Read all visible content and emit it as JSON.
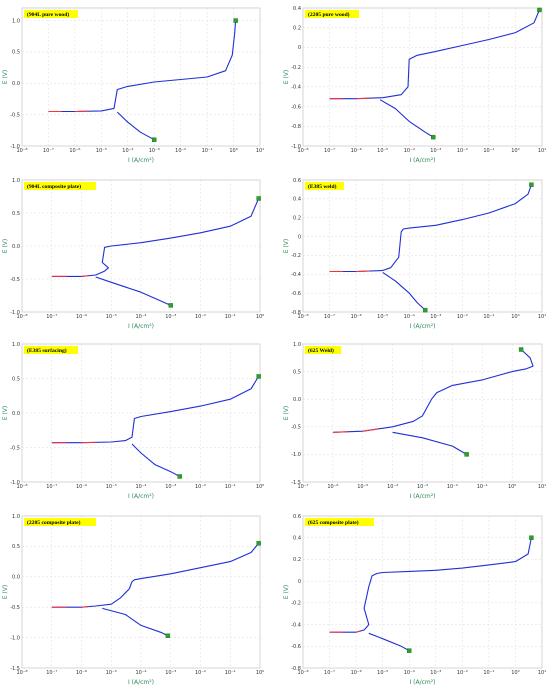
{
  "chart_data": [
    {
      "type": "line",
      "title": "(904L pure wood)",
      "xlabel": "I (A/cm²)",
      "ylabel": "E (V)",
      "x_scale": "log",
      "xlim": [
        1e-08,
        10
      ],
      "ylim": [
        -1.0,
        1.2
      ],
      "x_ticks": [
        "10⁻⁸",
        "10⁻⁷",
        "10⁻⁶",
        "10⁻⁵",
        "10⁻⁴",
        "10⁻³",
        "10⁻²",
        "10⁻¹",
        "10⁰",
        "10¹"
      ],
      "y_ticks": [
        1.0,
        0.5,
        0,
        -0.5,
        -1.0
      ],
      "y_tick_labels": [
        "1.0",
        "0.5",
        "0.0",
        "-0.5",
        "-1.0"
      ],
      "grid": true,
      "series": [
        {
          "x": [
            1e-07,
            1e-06,
            1e-05,
            3e-05,
            4e-05,
            0.0001,
            0.001,
            0.01,
            0.1,
            0.5,
            0.9,
            1.1,
            1.2
          ],
          "y": [
            -0.45,
            -0.45,
            -0.44,
            -0.4,
            -0.1,
            -0.05,
            0.02,
            0.06,
            0.1,
            0.2,
            0.45,
            0.8,
            1.0
          ]
        },
        {
          "x": [
            4e-05,
            0.0001,
            0.0003,
            0.001
          ],
          "y": [
            -0.46,
            -0.62,
            -0.78,
            -0.9
          ]
        }
      ]
    },
    {
      "type": "line",
      "title": "(2205 pure wood)",
      "xlabel": "I (A/cm²)",
      "ylabel": "E (V)",
      "x_scale": "log",
      "xlim": [
        1e-08,
        10
      ],
      "ylim": [
        -1.0,
        0.4
      ],
      "x_ticks": [
        "10⁻⁸",
        "10⁻⁷",
        "10⁻⁶",
        "10⁻⁵",
        "10⁻⁴",
        "10⁻³",
        "10⁻²",
        "10⁻¹",
        "10⁰",
        "10¹"
      ],
      "y_ticks": [
        0.4,
        0.2,
        0,
        -0.2,
        -0.4,
        -0.6,
        -0.8,
        -1.0
      ],
      "y_tick_labels": [
        "0.4",
        "0.2",
        "0",
        "-0.2",
        "-0.4",
        "-0.6",
        "-0.8",
        "-1.0"
      ],
      "grid": true,
      "series": [
        {
          "x": [
            1e-07,
            1e-06,
            1e-05,
            5e-05,
            9e-05,
            0.0001,
            0.0002,
            0.001,
            0.01,
            0.1,
            1,
            5,
            8
          ],
          "y": [
            -0.52,
            -0.52,
            -0.51,
            -0.48,
            -0.4,
            -0.12,
            -0.08,
            -0.04,
            0.02,
            0.08,
            0.15,
            0.25,
            0.38
          ]
        },
        {
          "x": [
            8e-06,
            3e-05,
            0.0001,
            0.0004,
            0.0008
          ],
          "y": [
            -0.53,
            -0.62,
            -0.75,
            -0.86,
            -0.91
          ]
        }
      ]
    },
    {
      "type": "line",
      "title": "(904L composite plate)",
      "xlabel": "I (A/cm²)",
      "ylabel": "E (V)",
      "x_scale": "log",
      "xlim": [
        1e-08,
        1
      ],
      "ylim": [
        -1.0,
        1.0
      ],
      "x_ticks": [
        "10⁻⁸",
        "10⁻⁷",
        "10⁻⁶",
        "10⁻⁵",
        "10⁻⁴",
        "10⁻³",
        "10⁻²",
        "10⁻¹",
        "10⁰"
      ],
      "y_ticks": [
        1.0,
        0.5,
        0,
        -0.5,
        -1.0
      ],
      "y_tick_labels": [
        "1.0",
        "0.5",
        "0.0",
        "-0.5",
        "-1.0"
      ],
      "grid": true,
      "series": [
        {
          "x": [
            1e-07,
            1e-06,
            3e-06,
            6e-06,
            8e-06,
            5e-06,
            6e-06,
            1e-05,
            0.0001,
            0.001,
            0.01,
            0.1,
            0.5,
            0.9
          ],
          "y": [
            -0.46,
            -0.46,
            -0.44,
            -0.38,
            -0.33,
            -0.25,
            -0.02,
            0.0,
            0.05,
            0.12,
            0.2,
            0.3,
            0.45,
            0.72
          ]
        },
        {
          "x": [
            3e-06,
            1e-05,
            0.0001,
            0.0004,
            0.001
          ],
          "y": [
            -0.47,
            -0.55,
            -0.7,
            -0.82,
            -0.9
          ]
        }
      ]
    },
    {
      "type": "line",
      "title": "(E385 weld)",
      "xlabel": "I (A/cm²)",
      "ylabel": "E (V)",
      "x_scale": "log",
      "xlim": [
        1e-08,
        10
      ],
      "ylim": [
        -0.8,
        0.6
      ],
      "x_ticks": [
        "10⁻⁸",
        "10⁻⁷",
        "10⁻⁶",
        "10⁻⁵",
        "10⁻⁴",
        "10⁻³",
        "10⁻²",
        "10⁻¹",
        "10⁰",
        "10¹"
      ],
      "y_ticks": [
        0.6,
        0.4,
        0.2,
        0,
        -0.2,
        -0.4,
        -0.6,
        -0.8
      ],
      "y_tick_labels": [
        "0.6",
        "0.4",
        "0.2",
        "0",
        "-0.2",
        "-0.4",
        "-0.6",
        "-0.8"
      ],
      "grid": true,
      "series": [
        {
          "x": [
            1e-07,
            1e-06,
            1e-05,
            2e-05,
            4e-05,
            5e-05,
            6e-05,
            0.0001,
            0.001,
            0.01,
            0.1,
            1,
            3,
            4
          ],
          "y": [
            -0.37,
            -0.37,
            -0.36,
            -0.33,
            -0.22,
            0.05,
            0.08,
            0.09,
            0.12,
            0.18,
            0.25,
            0.35,
            0.45,
            0.55
          ]
        },
        {
          "x": [
            1e-05,
            3e-05,
            0.0001,
            0.0002,
            0.0004
          ],
          "y": [
            -0.38,
            -0.47,
            -0.6,
            -0.7,
            -0.78
          ]
        }
      ]
    },
    {
      "type": "line",
      "title": "(E385 surfacing)",
      "xlabel": "I (A/cm²)",
      "ylabel": "E (V)",
      "x_scale": "log",
      "xlim": [
        1e-08,
        1
      ],
      "ylim": [
        -1.0,
        1.0
      ],
      "x_ticks": [
        "10⁻⁸",
        "10⁻⁷",
        "10⁻⁶",
        "10⁻⁵",
        "10⁻⁴",
        "10⁻³",
        "10⁻²",
        "10⁻¹",
        "10⁰"
      ],
      "y_ticks": [
        1.0,
        0.5,
        0,
        -0.5,
        -1.0
      ],
      "y_tick_labels": [
        "1.0",
        "0.5",
        "0.0",
        "-0.5",
        "-1.0"
      ],
      "grid": true,
      "series": [
        {
          "x": [
            1e-07,
            1e-06,
            1e-05,
            3e-05,
            5e-05,
            6e-05,
            0.0001,
            0.001,
            0.01,
            0.1,
            0.5,
            0.9
          ],
          "y": [
            -0.43,
            -0.43,
            -0.42,
            -0.4,
            -0.35,
            -0.08,
            -0.05,
            0.02,
            0.1,
            0.2,
            0.35,
            0.53
          ]
        },
        {
          "x": [
            5e-05,
            0.0001,
            0.0003,
            0.001,
            0.002
          ],
          "y": [
            -0.45,
            -0.58,
            -0.75,
            -0.85,
            -0.92
          ]
        }
      ]
    },
    {
      "type": "line",
      "title": "(625 Weld)",
      "xlabel": "I (A/cm²)",
      "ylabel": "E (V)",
      "x_scale": "log",
      "xlim": [
        1e-07,
        10
      ],
      "ylim": [
        -1.5,
        1.0
      ],
      "x_ticks": [
        "10⁻⁷",
        "10⁻⁶",
        "10⁻⁵",
        "10⁻⁴",
        "10⁻³",
        "10⁻²",
        "10⁻¹",
        "10⁰",
        "10¹"
      ],
      "y_ticks": [
        1.0,
        0.5,
        0,
        -0.5,
        -1.0,
        -1.5
      ],
      "y_tick_labels": [
        "1.0",
        "0.5",
        "0.0",
        "-0.5",
        "-1.0",
        "-1.5"
      ],
      "grid": true,
      "series": [
        {
          "x": [
            1e-06,
            1e-05,
            0.0001,
            0.0005,
            0.001,
            0.002,
            0.003,
            0.01,
            0.1,
            1,
            3,
            5,
            4,
            2
          ],
          "y": [
            -0.6,
            -0.58,
            -0.5,
            -0.4,
            -0.3,
            0.0,
            0.12,
            0.25,
            0.35,
            0.5,
            0.55,
            0.6,
            0.75,
            0.9
          ]
        },
        {
          "x": [
            0.0001,
            0.001,
            0.01,
            0.03
          ],
          "y": [
            -0.6,
            -0.7,
            -0.85,
            -1.0
          ]
        }
      ]
    },
    {
      "type": "line",
      "title": "(2205 composite plate)",
      "xlabel": "I (A/cm²)",
      "ylabel": "E (V)",
      "x_scale": "log",
      "xlim": [
        1e-08,
        1
      ],
      "ylim": [
        -1.5,
        1.0
      ],
      "x_ticks": [
        "10⁻⁸",
        "10⁻⁷",
        "10⁻⁶",
        "10⁻⁵",
        "10⁻⁴",
        "10⁻³",
        "10⁻²",
        "10⁻¹",
        "10⁰"
      ],
      "y_ticks": [
        1.0,
        0.5,
        0,
        -0.5,
        -1.0,
        -1.5
      ],
      "y_tick_labels": [
        "1.0",
        "0.5",
        "0.0",
        "-0.5",
        "-1.0",
        "-1.5"
      ],
      "grid": true,
      "series": [
        {
          "x": [
            1e-07,
            1e-06,
            3e-06,
            1e-05,
            2e-05,
            4e-05,
            5e-05,
            6e-05,
            0.0001,
            0.001,
            0.01,
            0.1,
            0.5,
            0.9
          ],
          "y": [
            -0.5,
            -0.5,
            -0.48,
            -0.45,
            -0.35,
            -0.2,
            -0.08,
            -0.05,
            -0.03,
            0.05,
            0.15,
            0.25,
            0.4,
            0.55
          ]
        },
        {
          "x": [
            5e-06,
            3e-05,
            0.0001,
            0.0005,
            0.0008
          ],
          "y": [
            -0.52,
            -0.62,
            -0.8,
            -0.92,
            -0.97
          ]
        }
      ]
    },
    {
      "type": "line",
      "title": "(625 composite plate)",
      "xlabel": "I (A/cm²)",
      "ylabel": "E (V)",
      "x_scale": "log",
      "xlim": [
        1e-08,
        10
      ],
      "ylim": [
        -0.8,
        0.6
      ],
      "x_ticks": [
        "10⁻⁸",
        "10⁻⁷",
        "10⁻⁶",
        "10⁻⁵",
        "10⁻⁴",
        "10⁻³",
        "10⁻²",
        "10⁻¹",
        "10⁰",
        "10¹"
      ],
      "y_ticks": [
        0.6,
        0.4,
        0.2,
        0,
        -0.2,
        -0.4,
        -0.6,
        -0.8
      ],
      "y_tick_labels": [
        "0.6",
        "0.4",
        "0.2",
        "0",
        "-0.2",
        "-0.4",
        "-0.6",
        "-0.8"
      ],
      "grid": true,
      "series": [
        {
          "x": [
            1e-07,
            1e-06,
            2e-06,
            3e-06,
            2e-06,
            3e-06,
            4e-06,
            6e-06,
            1e-05,
            0.0001,
            0.001,
            0.01,
            0.1,
            1,
            3,
            4
          ],
          "y": [
            -0.47,
            -0.47,
            -0.45,
            -0.4,
            -0.25,
            -0.05,
            0.05,
            0.07,
            0.08,
            0.09,
            0.1,
            0.12,
            0.15,
            0.18,
            0.25,
            0.4
          ]
        },
        {
          "x": [
            3e-06,
            1e-05,
            5e-05,
            0.0001
          ],
          "y": [
            -0.48,
            -0.53,
            -0.6,
            -0.64
          ]
        }
      ]
    }
  ]
}
